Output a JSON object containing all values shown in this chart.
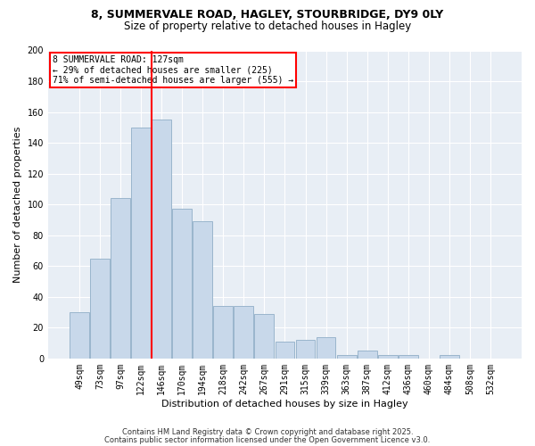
{
  "title_line1": "8, SUMMERVALE ROAD, HAGLEY, STOURBRIDGE, DY9 0LY",
  "title_line2": "Size of property relative to detached houses in Hagley",
  "xlabel": "Distribution of detached houses by size in Hagley",
  "ylabel": "Number of detached properties",
  "bar_labels": [
    "49sqm",
    "73sqm",
    "97sqm",
    "122sqm",
    "146sqm",
    "170sqm",
    "194sqm",
    "218sqm",
    "242sqm",
    "267sqm",
    "291sqm",
    "315sqm",
    "339sqm",
    "363sqm",
    "387sqm",
    "412sqm",
    "436sqm",
    "460sqm",
    "484sqm",
    "508sqm",
    "532sqm"
  ],
  "bar_values": [
    30,
    65,
    104,
    150,
    155,
    97,
    89,
    34,
    34,
    29,
    11,
    12,
    14,
    2,
    5,
    2,
    2,
    0,
    2,
    0,
    0
  ],
  "bar_color": "#c8d8ea",
  "bar_edgecolor": "#9ab5cc",
  "vline_color": "red",
  "vline_index": 3.5,
  "annotation_text": "8 SUMMERVALE ROAD: 127sqm\n← 29% of detached houses are smaller (225)\n71% of semi-detached houses are larger (555) →",
  "ylim": [
    0,
    200
  ],
  "yticks": [
    0,
    20,
    40,
    60,
    80,
    100,
    120,
    140,
    160,
    180,
    200
  ],
  "footer_line1": "Contains HM Land Registry data © Crown copyright and database right 2025.",
  "footer_line2": "Contains public sector information licensed under the Open Government Licence v3.0.",
  "bg_color": "#ffffff",
  "plot_bg_color": "#e8eef5",
  "grid_color": "#ffffff",
  "title_fontsize": 9,
  "subtitle_fontsize": 8.5,
  "tick_fontsize": 7,
  "label_fontsize": 8,
  "footer_fontsize": 6
}
